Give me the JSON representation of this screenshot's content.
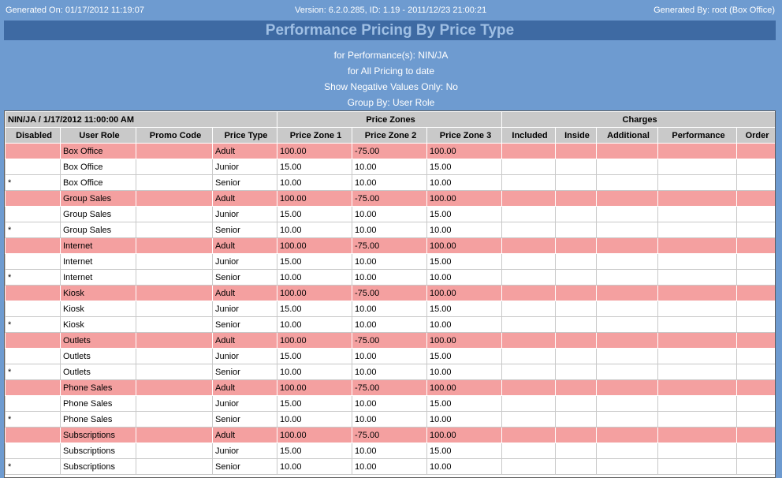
{
  "header": {
    "generated_on": "Generated On: 01/17/2012 11:19:07",
    "version": "Version: 6.2.0.285, ID: 1.19 - 2011/12/23 21:00:21",
    "generated_by": "Generated By: root (Box Office)"
  },
  "report_title": "Performance Pricing By Price Type",
  "params": [
    "for Performance(s): NIN/JA",
    "for All Pricing to date",
    "Show Negative Values Only: No",
    "Group By: User Role"
  ],
  "table": {
    "performance_label": "NIN/JA / 1/17/2012 11:00:00 AM",
    "group_price_zones": "Price Zones",
    "group_charges": "Charges",
    "columns": [
      "Disabled",
      "User Role",
      "Promo Code",
      "Price Type",
      "Price Zone 1",
      "Price Zone 2",
      "Price Zone 3",
      "Included",
      "Inside",
      "Additional",
      "Performance",
      "Order"
    ],
    "rows": [
      {
        "disabled": "",
        "role": "Box Office",
        "promo": "",
        "type": "Adult",
        "z1": "100.00",
        "z2": "-75.00",
        "z3": "100.00"
      },
      {
        "disabled": "",
        "role": "Box Office",
        "promo": "",
        "type": "Junior",
        "z1": "15.00",
        "z2": "10.00",
        "z3": "15.00"
      },
      {
        "disabled": "*",
        "role": "Box Office",
        "promo": "",
        "type": "Senior",
        "z1": "10.00",
        "z2": "10.00",
        "z3": "10.00"
      },
      {
        "disabled": "",
        "role": "Group Sales",
        "promo": "",
        "type": "Adult",
        "z1": "100.00",
        "z2": "-75.00",
        "z3": "100.00"
      },
      {
        "disabled": "",
        "role": "Group Sales",
        "promo": "",
        "type": "Junior",
        "z1": "15.00",
        "z2": "10.00",
        "z3": "15.00"
      },
      {
        "disabled": "*",
        "role": "Group Sales",
        "promo": "",
        "type": "Senior",
        "z1": "10.00",
        "z2": "10.00",
        "z3": "10.00"
      },
      {
        "disabled": "",
        "role": "Internet",
        "promo": "",
        "type": "Adult",
        "z1": "100.00",
        "z2": "-75.00",
        "z3": "100.00"
      },
      {
        "disabled": "",
        "role": "Internet",
        "promo": "",
        "type": "Junior",
        "z1": "15.00",
        "z2": "10.00",
        "z3": "15.00"
      },
      {
        "disabled": "*",
        "role": "Internet",
        "promo": "",
        "type": "Senior",
        "z1": "10.00",
        "z2": "10.00",
        "z3": "10.00"
      },
      {
        "disabled": "",
        "role": "Kiosk",
        "promo": "",
        "type": "Adult",
        "z1": "100.00",
        "z2": "-75.00",
        "z3": "100.00"
      },
      {
        "disabled": "",
        "role": "Kiosk",
        "promo": "",
        "type": "Junior",
        "z1": "15.00",
        "z2": "10.00",
        "z3": "15.00"
      },
      {
        "disabled": "*",
        "role": "Kiosk",
        "promo": "",
        "type": "Senior",
        "z1": "10.00",
        "z2": "10.00",
        "z3": "10.00"
      },
      {
        "disabled": "",
        "role": "Outlets",
        "promo": "",
        "type": "Adult",
        "z1": "100.00",
        "z2": "-75.00",
        "z3": "100.00"
      },
      {
        "disabled": "",
        "role": "Outlets",
        "promo": "",
        "type": "Junior",
        "z1": "15.00",
        "z2": "10.00",
        "z3": "15.00"
      },
      {
        "disabled": "*",
        "role": "Outlets",
        "promo": "",
        "type": "Senior",
        "z1": "10.00",
        "z2": "10.00",
        "z3": "10.00"
      },
      {
        "disabled": "",
        "role": "Phone Sales",
        "promo": "",
        "type": "Adult",
        "z1": "100.00",
        "z2": "-75.00",
        "z3": "100.00"
      },
      {
        "disabled": "",
        "role": "Phone Sales",
        "promo": "",
        "type": "Junior",
        "z1": "15.00",
        "z2": "10.00",
        "z3": "15.00"
      },
      {
        "disabled": "*",
        "role": "Phone Sales",
        "promo": "",
        "type": "Senior",
        "z1": "10.00",
        "z2": "10.00",
        "z3": "10.00"
      },
      {
        "disabled": "",
        "role": "Subscriptions",
        "promo": "",
        "type": "Adult",
        "z1": "100.00",
        "z2": "-75.00",
        "z3": "100.00"
      },
      {
        "disabled": "",
        "role": "Subscriptions",
        "promo": "",
        "type": "Junior",
        "z1": "15.00",
        "z2": "10.00",
        "z3": "15.00"
      },
      {
        "disabled": "*",
        "role": "Subscriptions",
        "promo": "",
        "type": "Senior",
        "z1": "10.00",
        "z2": "10.00",
        "z3": "10.00"
      }
    ]
  },
  "colors": {
    "page_bg": "#6e9bd0",
    "title_bar": "#3e6aa3",
    "title_text": "#9fbfe4",
    "header_cell": "#c9c9c9",
    "highlight_row": "#f4a0a0"
  }
}
